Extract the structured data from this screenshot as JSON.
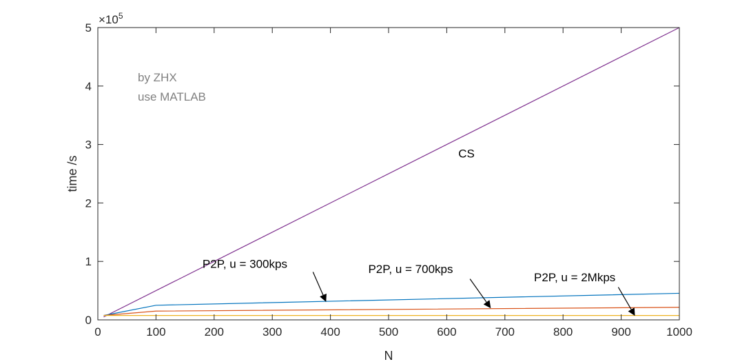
{
  "chart_data": {
    "type": "line",
    "title": "",
    "xlabel": "N",
    "ylabel": "time /s",
    "xlim": [
      0,
      1000
    ],
    "ylim": [
      0,
      500000
    ],
    "y_exponent_label": "×10",
    "y_exponent_power": "5",
    "x_ticks": [
      {
        "value": 0,
        "label": "0"
      },
      {
        "value": 100,
        "label": "100"
      },
      {
        "value": 200,
        "label": "200"
      },
      {
        "value": 300,
        "label": "300"
      },
      {
        "value": 400,
        "label": "400"
      },
      {
        "value": 500,
        "label": "500"
      },
      {
        "value": 600,
        "label": "600"
      },
      {
        "value": 700,
        "label": "700"
      },
      {
        "value": 800,
        "label": "800"
      },
      {
        "value": 900,
        "label": "900"
      },
      {
        "value": 1000,
        "label": "1000"
      }
    ],
    "y_ticks": [
      {
        "value": 0,
        "label": "0"
      },
      {
        "value": 100000,
        "label": "1"
      },
      {
        "value": 200000,
        "label": "2"
      },
      {
        "value": 300000,
        "label": "3"
      },
      {
        "value": 400000,
        "label": "4"
      },
      {
        "value": 500000,
        "label": "5"
      }
    ],
    "grid": false,
    "series": [
      {
        "name": "CS",
        "color": "#7E2F8E",
        "x": [
          10,
          1000
        ],
        "y": [
          5000,
          500000
        ]
      },
      {
        "name": "P2P, u = 300kps",
        "color": "#0072BD",
        "x": [
          10,
          100,
          1000
        ],
        "y": [
          7500,
          25000,
          45500
        ]
      },
      {
        "name": "P2P, u = 700kps",
        "color": "#D95319",
        "x": [
          10,
          100,
          1000
        ],
        "y": [
          7500,
          15000,
          21500
        ]
      },
      {
        "name": "P2P, u = 2Mkps",
        "color": "#EDB120",
        "x": [
          10,
          100,
          1000
        ],
        "y": [
          7500,
          7500,
          7500
        ]
      }
    ],
    "annotations": [
      {
        "text": "CS",
        "x": 620,
        "y": 278000,
        "arrow": false
      },
      {
        "text": "P2P, u = 300kps",
        "x": 180,
        "y": 89000,
        "arrow": true,
        "tail_x": 370,
        "tail_y": 82000,
        "head_x": 392,
        "head_y": 32000
      },
      {
        "text": "P2P, u = 700kps",
        "x": 465,
        "y": 80000,
        "arrow": true,
        "tail_x": 640,
        "tail_y": 70000,
        "head_x": 675,
        "head_y": 21000
      },
      {
        "text": "P2P, u = 2Mkps",
        "x": 750,
        "y": 66000,
        "arrow": true,
        "tail_x": 895,
        "tail_y": 56000,
        "head_x": 923,
        "head_y": 8000
      }
    ],
    "notes": [
      "by ZHX",
      "use MATLAB"
    ]
  }
}
